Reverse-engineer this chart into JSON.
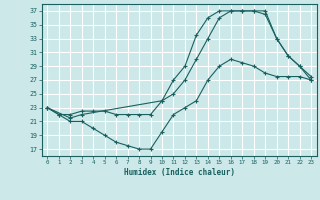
{
  "xlabel": "Humidex (Indice chaleur)",
  "bg_color": "#cce8e8",
  "grid_color": "#ffffff",
  "line_color": "#1a6060",
  "xlim": [
    -0.5,
    23.5
  ],
  "ylim": [
    16,
    38
  ],
  "xticks": [
    0,
    1,
    2,
    3,
    4,
    5,
    6,
    7,
    8,
    9,
    10,
    11,
    12,
    13,
    14,
    15,
    16,
    17,
    18,
    19,
    20,
    21,
    22,
    23
  ],
  "yticks": [
    17,
    19,
    21,
    23,
    25,
    27,
    29,
    31,
    33,
    35,
    37
  ],
  "curve1_x": [
    0,
    1,
    2,
    3,
    4,
    5,
    6,
    7,
    8,
    9,
    10,
    11,
    12,
    13,
    14,
    15,
    16,
    17,
    18,
    19,
    20,
    21,
    22,
    23
  ],
  "curve1_y": [
    23,
    22,
    21,
    21,
    20,
    19,
    18,
    17.5,
    17,
    17,
    19.5,
    22,
    23,
    24,
    27,
    29,
    30,
    29.5,
    29,
    28,
    27.5,
    27.5,
    27.5,
    27
  ],
  "curve2_x": [
    0,
    1,
    2,
    3,
    4,
    5,
    6,
    7,
    8,
    9,
    10,
    11,
    12,
    13,
    14,
    15,
    16,
    17,
    18,
    19,
    20,
    21,
    22,
    23
  ],
  "curve2_y": [
    23,
    22,
    22,
    22.5,
    22.5,
    22.5,
    22,
    22,
    22,
    22,
    24,
    25,
    27,
    30,
    33,
    36,
    37,
    37,
    37,
    36.5,
    33,
    30.5,
    29,
    27.5
  ],
  "curve3_x": [
    0,
    2,
    3,
    10,
    11,
    12,
    13,
    14,
    15,
    16,
    17,
    18,
    19,
    20,
    21,
    22,
    23
  ],
  "curve3_y": [
    23,
    21.5,
    22,
    24,
    27,
    29,
    33.5,
    36,
    37,
    37,
    37,
    37,
    37,
    33,
    30.5,
    29,
    27
  ]
}
